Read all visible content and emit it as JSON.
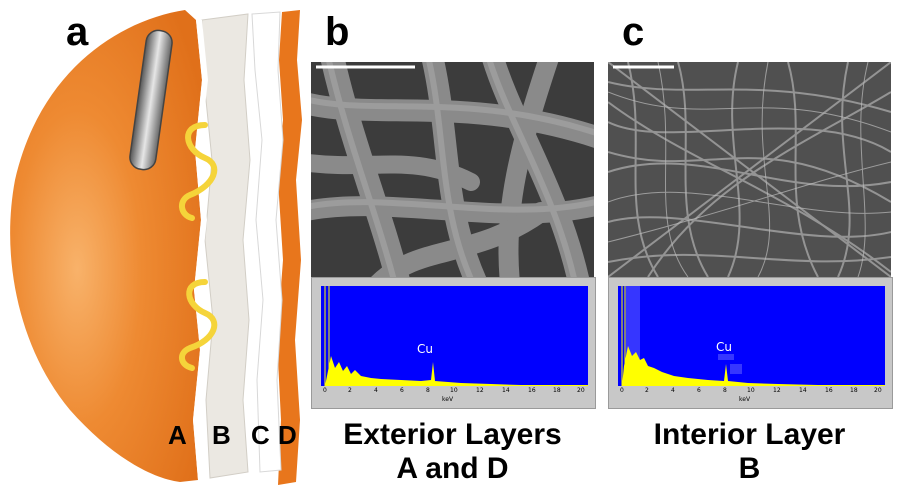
{
  "panels": {
    "a": {
      "letter": "a",
      "layers": [
        "A",
        "B",
        "C",
        "D"
      ]
    },
    "b": {
      "letter": "b",
      "caption_line1": "Exterior Layers",
      "caption_line2": "A and D",
      "eds": {
        "peak": "Cu",
        "unit": "keV",
        "ticks": [
          "0",
          "2",
          "4",
          "6",
          "8",
          "10",
          "12",
          "14",
          "16",
          "18",
          "20"
        ]
      }
    },
    "c": {
      "letter": "c",
      "caption_line1": "Interior Layer",
      "caption_line2": "B",
      "eds": {
        "peak": "Cu",
        "unit": "keV",
        "ticks": [
          "0",
          "2",
          "4",
          "6",
          "8",
          "10",
          "12",
          "14",
          "16",
          "18",
          "20"
        ]
      }
    }
  },
  "colors": {
    "mask_orange": "#e8761c",
    "layer_white": "#f2f0ec",
    "layer_grey": "#e8e4de",
    "eds_blue": "#0000ff",
    "spectrum_yellow": "#ffff00",
    "strap_yellow": "#f5d43a"
  }
}
